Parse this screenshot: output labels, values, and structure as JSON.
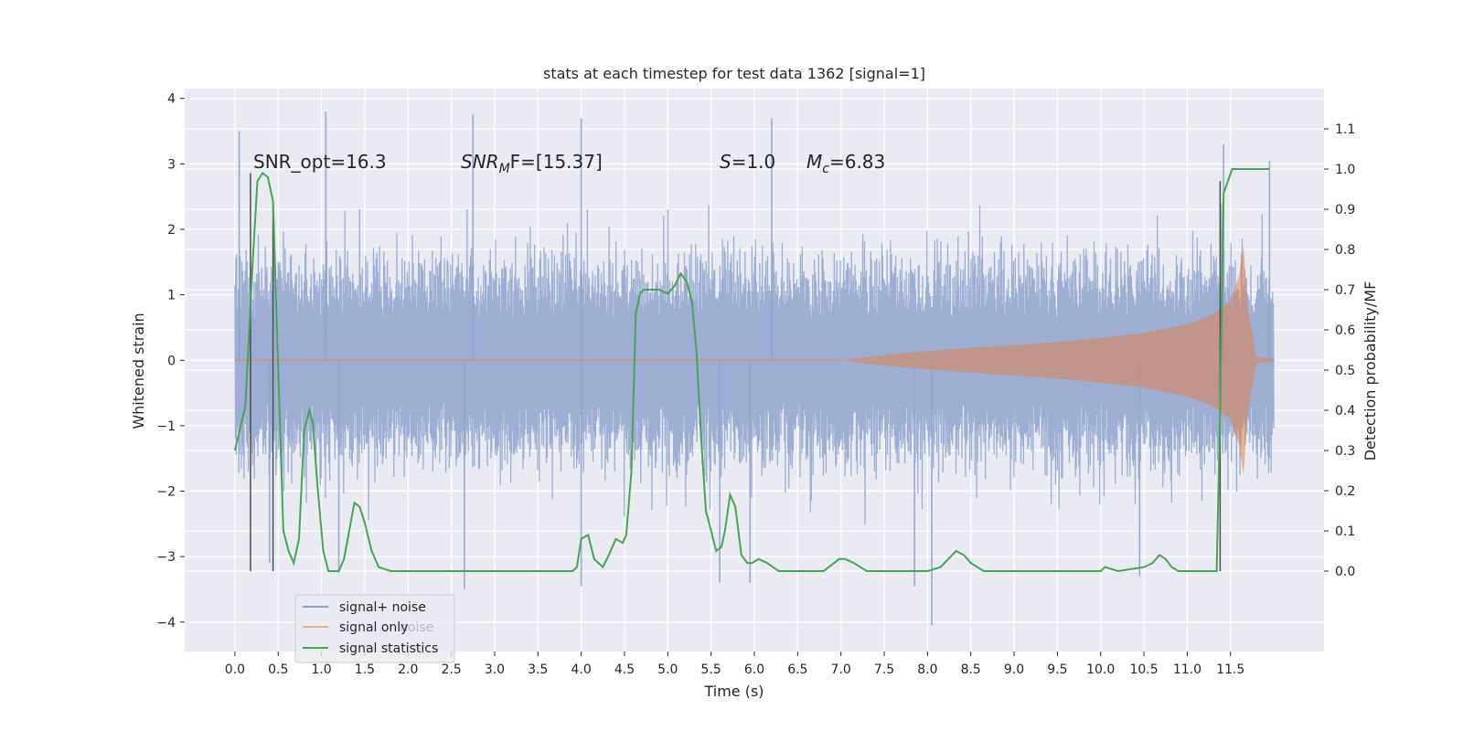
{
  "chart_data": {
    "type": "line",
    "title": "stats at each timestep for test data 1362 [signal=1]",
    "xlabel": "Time (s)",
    "ylabel": "Whitened strain",
    "ylabel_right": "Detection probability/MF",
    "xlim": [
      -0.58,
      12.58
    ],
    "ylim": [
      -4.45,
      4.15
    ],
    "ylim_right": [
      -0.2,
      1.2
    ],
    "x_ticks": [
      0.0,
      0.5,
      1.0,
      1.5,
      2.0,
      2.5,
      3.0,
      3.5,
      4.0,
      4.5,
      5.0,
      5.5,
      6.0,
      6.5,
      7.0,
      7.5,
      8.0,
      8.5,
      9.0,
      9.5,
      10.0,
      10.5,
      11.0,
      11.5
    ],
    "x_tick_labels": [
      "0.0",
      "0.5",
      "1.0",
      "1.5",
      "2.0",
      "2.5",
      "3.0",
      "3.5",
      "4.0",
      "4.5",
      "5.0",
      "5.5",
      "6.0",
      "6.5",
      "7.0",
      "7.5",
      "8.0",
      "8.5",
      "9.0",
      "9.5",
      "10.0",
      "10.5",
      "11.0",
      "11.5"
    ],
    "y_ticks": [
      -4,
      -3,
      -2,
      -1,
      0,
      1,
      2,
      3,
      4
    ],
    "y_tick_labels": [
      "−4",
      "−3",
      "−2",
      "−1",
      "0",
      "1",
      "2",
      "3",
      "4"
    ],
    "y_right_ticks": [
      0.0,
      0.1,
      0.2,
      0.3,
      0.4,
      0.5,
      0.6,
      0.7,
      0.8,
      0.9,
      1.0,
      1.1
    ],
    "y_right_tick_labels": [
      "0.0",
      "0.1",
      "0.2",
      "0.3",
      "0.4",
      "0.5",
      "0.6",
      "0.7",
      "0.8",
      "0.9",
      "1.0",
      "1.1"
    ],
    "grid": true,
    "legend_position": "lower-left",
    "annotations": {
      "snr_opt": "SNR_opt=16.3",
      "snr_mf_main": "SNR",
      "snr_mf_sub": "M",
      "snr_mf_rest": "F=[15.37]",
      "s_main": "S",
      "s_rest": "=1.0",
      "mc_main": "M",
      "mc_sub": "c",
      "mc_rest": "=6.83",
      "legend_ghost_text": "noise"
    },
    "series": [
      {
        "name": "signal+ noise",
        "color": "#8fa3cc",
        "x_range": [
          0.0,
          12.0
        ],
        "envelope_typical": 1.9,
        "spike_peaks": [
          {
            "x": 0.05,
            "y": 3.5
          },
          {
            "x": 1.05,
            "y": 3.8
          },
          {
            "x": 2.75,
            "y": 3.75
          },
          {
            "x": 4.0,
            "y": 3.7
          },
          {
            "x": 6.2,
            "y": 3.7
          },
          {
            "x": 11.42,
            "y": 3.3
          },
          {
            "x": 11.95,
            "y": 3.05
          }
        ],
        "spike_troughs": [
          {
            "x": 0.4,
            "y": -3.1
          },
          {
            "x": 1.2,
            "y": -3.25
          },
          {
            "x": 2.65,
            "y": -3.5
          },
          {
            "x": 4.0,
            "y": -3.45
          },
          {
            "x": 5.6,
            "y": -3.4
          },
          {
            "x": 5.95,
            "y": -3.4
          },
          {
            "x": 7.85,
            "y": -3.45
          },
          {
            "x": 8.05,
            "y": -4.05
          },
          {
            "x": 10.45,
            "y": -3.3
          }
        ]
      },
      {
        "name": "signal only",
        "color": "#dd8452",
        "envelope": {
          "x": [
            7.0,
            7.5,
            8.0,
            8.5,
            9.0,
            9.5,
            10.0,
            10.5,
            11.0,
            11.3,
            11.5,
            11.6,
            11.65,
            11.7,
            11.8,
            12.0
          ],
          "y": [
            0.0,
            0.08,
            0.14,
            0.19,
            0.23,
            0.28,
            0.34,
            0.42,
            0.55,
            0.7,
            0.9,
            1.3,
            1.75,
            0.8,
            0.05,
            0.02
          ]
        },
        "merger_time": 11.65
      },
      {
        "name": "signal statistics",
        "color": "#4aa257",
        "x": [
          0.0,
          0.12,
          0.2,
          0.26,
          0.32,
          0.38,
          0.44,
          0.5,
          0.56,
          0.62,
          0.68,
          0.74,
          0.8,
          0.86,
          0.9,
          0.95,
          1.02,
          1.08,
          1.14,
          1.2,
          1.26,
          1.32,
          1.38,
          1.44,
          1.5,
          1.58,
          1.66,
          1.8,
          2.5,
          3.0,
          3.5,
          3.9,
          3.95,
          4.0,
          4.08,
          4.15,
          4.25,
          4.32,
          4.4,
          4.48,
          4.52,
          4.58,
          4.63,
          4.68,
          4.72,
          4.8,
          4.9,
          5.0,
          5.08,
          5.15,
          5.22,
          5.28,
          5.33,
          5.38,
          5.44,
          5.5,
          5.56,
          5.62,
          5.66,
          5.72,
          5.78,
          5.85,
          5.92,
          5.97,
          6.05,
          6.15,
          6.28,
          6.35,
          6.45,
          6.6,
          6.8,
          6.98,
          7.05,
          7.15,
          7.3,
          7.5,
          8.0,
          8.15,
          8.24,
          8.33,
          8.42,
          8.5,
          8.65,
          9.0,
          10.0,
          10.05,
          10.2,
          10.5,
          10.6,
          10.68,
          10.75,
          10.82,
          10.9,
          11.0,
          11.3,
          11.34,
          11.38,
          11.42,
          11.47,
          11.52,
          11.6,
          11.75,
          11.95
        ],
        "y": [
          0.3,
          0.41,
          0.75,
          0.97,
          0.99,
          0.98,
          0.92,
          0.5,
          0.1,
          0.05,
          0.02,
          0.08,
          0.35,
          0.4,
          0.37,
          0.22,
          0.05,
          0.0,
          0.0,
          0.0,
          0.03,
          0.1,
          0.17,
          0.16,
          0.12,
          0.05,
          0.01,
          0.0,
          0.0,
          0.0,
          0.0,
          0.0,
          0.01,
          0.08,
          0.09,
          0.03,
          0.01,
          0.04,
          0.08,
          0.07,
          0.09,
          0.25,
          0.64,
          0.69,
          0.7,
          0.7,
          0.7,
          0.69,
          0.71,
          0.74,
          0.72,
          0.67,
          0.55,
          0.35,
          0.15,
          0.1,
          0.05,
          0.06,
          0.1,
          0.19,
          0.16,
          0.04,
          0.02,
          0.02,
          0.03,
          0.02,
          0.0,
          0.0,
          0.0,
          0.0,
          0.0,
          0.03,
          0.03,
          0.02,
          0.0,
          0.0,
          0.0,
          0.01,
          0.03,
          0.05,
          0.04,
          0.02,
          0.0,
          0.0,
          0.0,
          0.01,
          0.0,
          0.01,
          0.02,
          0.04,
          0.03,
          0.01,
          0.0,
          0.0,
          0.0,
          0.0,
          0.4,
          0.94,
          0.97,
          1.0,
          1.0,
          1.0,
          1.0
        ]
      }
    ],
    "vertical_markers": {
      "color": "#4d4d4d",
      "lines": [
        {
          "x": 0.18,
          "y_top": 0.99
        },
        {
          "x": 0.44,
          "y_top": 0.92
        },
        {
          "x": 11.38,
          "y_top": 0.97
        }
      ]
    }
  }
}
